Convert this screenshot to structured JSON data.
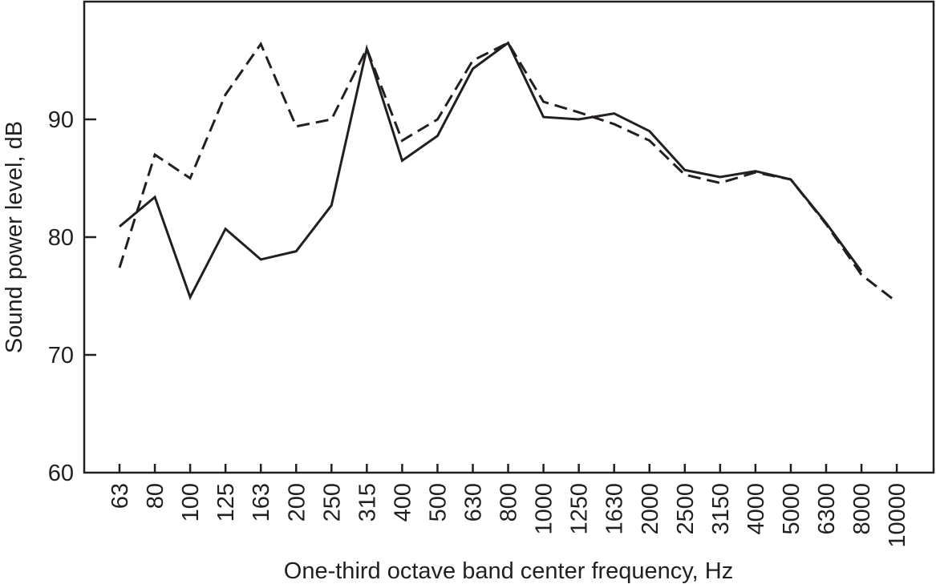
{
  "chart_data": {
    "type": "line",
    "title": "",
    "xlabel": "One-third octave band center frequency, Hz",
    "ylabel": "Sound power level, dB",
    "ylim": [
      60,
      100
    ],
    "yticks": [
      60,
      70,
      80,
      90
    ],
    "grid": false,
    "legend": null,
    "categories": [
      "63",
      "80",
      "100",
      "125",
      "163",
      "200",
      "250",
      "315",
      "400",
      "500",
      "630",
      "800",
      "1000",
      "1250",
      "1630",
      "2000",
      "2500",
      "3150",
      "4000",
      "5000",
      "6300",
      "8000",
      "10000"
    ],
    "series": [
      {
        "name": "solid",
        "style": "solid",
        "values": [
          80.9,
          83.4,
          74.9,
          80.7,
          78.1,
          78.8,
          82.7,
          96.0,
          86.5,
          88.6,
          94.3,
          96.5,
          90.2,
          90.0,
          90.5,
          89.0,
          85.7,
          85.1,
          85.6,
          84.9,
          81.2,
          77.1,
          null
        ]
      },
      {
        "name": "dashed",
        "style": "dashed",
        "values": [
          77.4,
          87.0,
          85.0,
          92.1,
          96.4,
          89.4,
          90.0,
          96.0,
          88.2,
          90.0,
          95.0,
          96.5,
          91.5,
          90.6,
          89.6,
          88.2,
          85.3,
          84.6,
          85.5,
          84.9,
          81.1,
          76.8,
          74.5
        ]
      }
    ]
  },
  "colors": {
    "line": "#231f20",
    "axis": "#231f20",
    "background": "#ffffff"
  }
}
